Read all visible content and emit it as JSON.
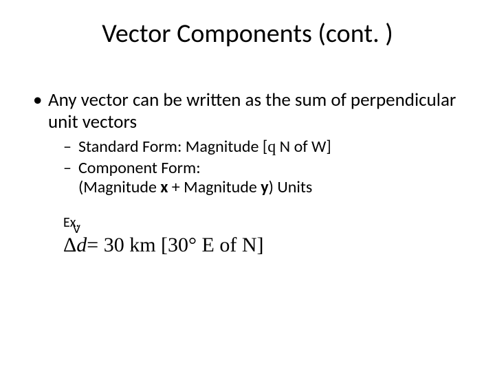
{
  "title": "Vector Components (cont. )",
  "bullets": {
    "l1": "Any vector can be written as the sum of perpendicular unit vectors",
    "l2a_prefix": "Standard Form:  Magnitude [",
    "l2a_theta": "q",
    "l2a_suffix": " N of W]",
    "l2b_line1": "Component Form:",
    "l2b_line2_open": "(Magnitude ",
    "l2b_line2_x": "x",
    "l2b_line2_mid": " + Magnitude ",
    "l2b_line2_y": "y",
    "l2b_line2_close": ") Units"
  },
  "example": {
    "label": "Ex.",
    "delta": "Δ",
    "d": "d",
    "arrow": "ᐯ",
    "equals_part": " = 30 km [30° E of N]"
  },
  "style": {
    "background": "#ffffff",
    "text_color": "#000000",
    "title_fontsize": 38,
    "l1_fontsize": 27,
    "l2_fontsize": 24,
    "ex_fontsize": 20,
    "formula_fontsize": 30
  }
}
